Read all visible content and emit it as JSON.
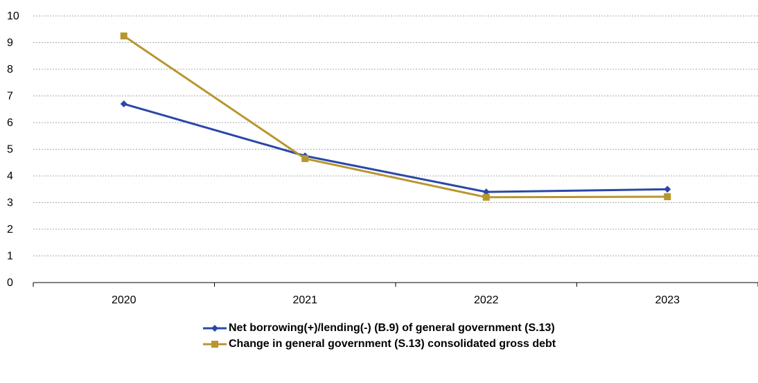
{
  "chart_data": {
    "type": "line",
    "categories": [
      "2020",
      "2021",
      "2022",
      "2023"
    ],
    "ylim": [
      0,
      10
    ],
    "yticks": [
      0,
      1,
      2,
      3,
      4,
      5,
      6,
      7,
      8,
      9,
      10
    ],
    "grid": true,
    "legend_position": "bottom",
    "series": [
      {
        "name": "Net borrowing(+)/lending(-) (B.9) of general government (S.13)",
        "values": [
          6.7,
          4.75,
          3.4,
          3.5
        ],
        "color": "#2a47a8",
        "marker": "diamond"
      },
      {
        "name": "Change in general government (S.13) consolidated gross debt",
        "values": [
          9.25,
          4.65,
          3.2,
          3.22
        ],
        "color": "#b8962e",
        "marker": "square"
      }
    ]
  }
}
